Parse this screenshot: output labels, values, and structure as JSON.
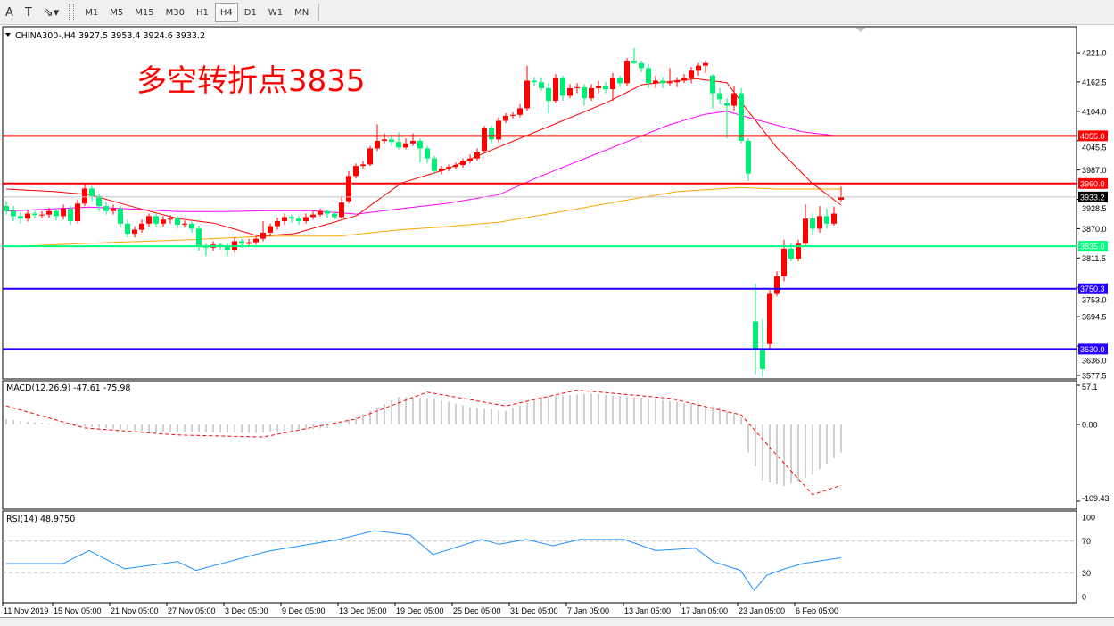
{
  "toolbar": {
    "tools": [
      {
        "label": "A",
        "icon": "text-icon"
      },
      {
        "label": "T",
        "icon": "text-label-icon"
      },
      {
        "label": "⇘▾",
        "icon": "arrows-dropdown-icon"
      }
    ],
    "timeframes": [
      "M1",
      "M5",
      "M15",
      "M30",
      "H1",
      "H4",
      "D1",
      "W1",
      "MN"
    ],
    "active_timeframe": "H4"
  },
  "header": {
    "symbol_info": "CHINA300-,H4  3927.5 3953.4 3924.6 3933.2"
  },
  "annotation": {
    "text": "多空转折点3835",
    "color": "#ff0000"
  },
  "colors": {
    "up": "#ff0000",
    "down": "#00ee77",
    "ma_fast": "#ff0000",
    "ma_mid": "#ff00ff",
    "ma_slow": "#ffa500",
    "macd_hist": "#c0c0c0",
    "macd_signal": "#ff0000",
    "rsi": "#1e90ff"
  },
  "chart_data": [
    {
      "type": "candlestick",
      "ylim": [
        3577.5,
        4221.0
      ],
      "price_ticks": [
        "4221.0",
        "4162.5",
        "4104.0",
        "4045.5",
        "3987.0",
        "3928.5",
        "3870.0",
        "3811.5",
        "3753.0",
        "3694.5",
        "3636.0",
        "3577.5"
      ],
      "time_labels": [
        {
          "bar": 0,
          "label": "11 Nov 2019"
        },
        {
          "bar": 7,
          "label": "15 Nov 05:00"
        },
        {
          "bar": 15,
          "label": "21 Nov 05:00"
        },
        {
          "bar": 23,
          "label": "27 Nov 05:00"
        },
        {
          "bar": 31,
          "label": "3 Dec 05:00"
        },
        {
          "bar": 39,
          "label": "9 Dec 05:00"
        },
        {
          "bar": 47,
          "label": "13 Dec 05:00"
        },
        {
          "bar": 55,
          "label": "19 Dec 05:00"
        },
        {
          "bar": 63,
          "label": "25 Dec 05:00"
        },
        {
          "bar": 71,
          "label": "31 Dec 05:00"
        },
        {
          "bar": 79,
          "label": "7 Jan 05:00"
        },
        {
          "bar": 87,
          "label": "13 Jan 05:00"
        },
        {
          "bar": 95,
          "label": "17 Jan 05:00"
        },
        {
          "bar": 103,
          "label": "23 Jan 05:00"
        },
        {
          "bar": 111,
          "label": "6 Feb 05:00"
        }
      ],
      "levels": [
        {
          "value": 4055.0,
          "label": "4055.0",
          "color": "#ff0000"
        },
        {
          "value": 3960.0,
          "label": "3960.0",
          "color": "#ff0000"
        },
        {
          "value": 3933.2,
          "label": "3933.2",
          "color": "#000000",
          "line": "#c0c0c0"
        },
        {
          "value": 3835.0,
          "label": "3835.0",
          "color": "#00ff7f"
        },
        {
          "value": 3750.3,
          "label": "3750.3",
          "color": "#2200ff"
        },
        {
          "value": 3630.0,
          "label": "3630.0",
          "color": "#2200ff"
        }
      ],
      "ohlc": [
        [
          3915,
          3925,
          3898,
          3905
        ],
        [
          3905,
          3915,
          3885,
          3895
        ],
        [
          3895,
          3902,
          3880,
          3890
        ],
        [
          3890,
          3908,
          3884,
          3900
        ],
        [
          3900,
          3906,
          3890,
          3897
        ],
        [
          3897,
          3905,
          3890,
          3898
        ],
        [
          3898,
          3912,
          3892,
          3905
        ],
        [
          3905,
          3910,
          3886,
          3895
        ],
        [
          3895,
          3918,
          3888,
          3910
        ],
        [
          3910,
          3915,
          3878,
          3885
        ],
        [
          3885,
          3928,
          3880,
          3920
        ],
        [
          3920,
          3958,
          3915,
          3950
        ],
        [
          3950,
          3955,
          3925,
          3935
        ],
        [
          3935,
          3940,
          3905,
          3915
        ],
        [
          3915,
          3922,
          3898,
          3905
        ],
        [
          3905,
          3918,
          3898,
          3910
        ],
        [
          3910,
          3915,
          3872,
          3880
        ],
        [
          3880,
          3888,
          3852,
          3860
        ],
        [
          3860,
          3875,
          3852,
          3868
        ],
        [
          3868,
          3888,
          3862,
          3880
        ],
        [
          3880,
          3900,
          3874,
          3895
        ],
        [
          3895,
          3900,
          3872,
          3880
        ],
        [
          3880,
          3895,
          3874,
          3888
        ],
        [
          3888,
          3897,
          3880,
          3890
        ],
        [
          3890,
          3895,
          3870,
          3878
        ],
        [
          3878,
          3886,
          3872,
          3880
        ],
        [
          3880,
          3884,
          3862,
          3870
        ],
        [
          3870,
          3876,
          3826,
          3835
        ],
        [
          3835,
          3840,
          3815,
          3832
        ],
        [
          3832,
          3845,
          3826,
          3838
        ],
        [
          3838,
          3842,
          3828,
          3836
        ],
        [
          3836,
          3840,
          3815,
          3828
        ],
        [
          3828,
          3852,
          3822,
          3845
        ],
        [
          3845,
          3850,
          3832,
          3840
        ],
        [
          3840,
          3850,
          3835,
          3843
        ],
        [
          3843,
          3855,
          3838,
          3850
        ],
        [
          3850,
          3885,
          3845,
          3862
        ],
        [
          3862,
          3880,
          3855,
          3875
        ],
        [
          3875,
          3892,
          3868,
          3885
        ],
        [
          3885,
          3900,
          3878,
          3893
        ],
        [
          3893,
          3898,
          3882,
          3890
        ],
        [
          3890,
          3895,
          3878,
          3885
        ],
        [
          3885,
          3900,
          3880,
          3893
        ],
        [
          3893,
          3905,
          3888,
          3898
        ],
        [
          3898,
          3910,
          3894,
          3905
        ],
        [
          3905,
          3908,
          3892,
          3900
        ],
        [
          3900,
          3904,
          3888,
          3893
        ],
        [
          3893,
          3935,
          3890,
          3922
        ],
        [
          3925,
          3985,
          3920,
          3975
        ],
        [
          3975,
          4000,
          3970,
          3995
        ],
        [
          3995,
          4005,
          3990,
          3998
        ],
        [
          3998,
          4035,
          3995,
          4030
        ],
        [
          4030,
          4078,
          4025,
          4045
        ],
        [
          4045,
          4060,
          4040,
          4048
        ],
        [
          4048,
          4058,
          4035,
          4043
        ],
        [
          4043,
          4062,
          4028,
          4032
        ],
        [
          4032,
          4050,
          4028,
          4040
        ],
        [
          4040,
          4060,
          4035,
          4045
        ],
        [
          4045,
          4050,
          4002,
          4030
        ],
        [
          4030,
          4035,
          4000,
          4010
        ],
        [
          4010,
          4015,
          3978,
          3985
        ],
        [
          3985,
          3995,
          3978,
          3990
        ],
        [
          3990,
          3998,
          3984,
          3993
        ],
        [
          3993,
          4002,
          3988,
          3997
        ],
        [
          3997,
          4010,
          3992,
          4005
        ],
        [
          4005,
          4018,
          4000,
          4010
        ],
        [
          4010,
          4030,
          4005,
          4022
        ],
        [
          4025,
          4075,
          4020,
          4070
        ],
        [
          4070,
          4075,
          4040,
          4048
        ],
        [
          4048,
          4092,
          4042,
          4085
        ],
        [
          4085,
          4100,
          4080,
          4095
        ],
        [
          4095,
          4102,
          4090,
          4097
        ],
        [
          4097,
          4118,
          4092,
          4110
        ],
        [
          4110,
          4195,
          4105,
          4165
        ],
        [
          4165,
          4172,
          4155,
          4162
        ],
        [
          4162,
          4170,
          4145,
          4150
        ],
        [
          4150,
          4160,
          4100,
          4125
        ],
        [
          4125,
          4178,
          4120,
          4170
        ],
        [
          4170,
          4175,
          4125,
          4135
        ],
        [
          4135,
          4158,
          4130,
          4150
        ],
        [
          4150,
          4160,
          4140,
          4152
        ],
        [
          4152,
          4158,
          4115,
          4130
        ],
        [
          4130,
          4158,
          4125,
          4150
        ],
        [
          4150,
          4165,
          4140,
          4155
        ],
        [
          4155,
          4162,
          4140,
          4148
        ],
        [
          4148,
          4180,
          4125,
          4170
        ],
        [
          4170,
          4175,
          4152,
          4160
        ],
        [
          4160,
          4210,
          4155,
          4205
        ],
        [
          4205,
          4230,
          4198,
          4200
        ],
        [
          4200,
          4205,
          4182,
          4190
        ],
        [
          4190,
          4198,
          4150,
          4160
        ],
        [
          4160,
          4175,
          4150,
          4165
        ],
        [
          4165,
          4172,
          4150,
          4160
        ],
        [
          4160,
          4190,
          4155,
          4162
        ],
        [
          4162,
          4172,
          4152,
          4165
        ],
        [
          4165,
          4178,
          4160,
          4170
        ],
        [
          4170,
          4192,
          4160,
          4185
        ],
        [
          4185,
          4200,
          4175,
          4195
        ],
        [
          4195,
          4205,
          4180,
          4200
        ],
        [
          4175,
          4178,
          4110,
          4140
        ],
        [
          4140,
          4150,
          4118,
          4128
        ],
        [
          4120,
          4130,
          4050,
          4115
        ],
        [
          4115,
          4155,
          4105,
          4140
        ],
        [
          4140,
          4150,
          4040,
          4045
        ],
        [
          4045,
          4050,
          3965,
          3980
        ],
        [
          3685,
          3760,
          3580,
          3630
        ],
        [
          3630,
          3690,
          3575,
          3590
        ],
        [
          3640,
          3748,
          3630,
          3740
        ],
        [
          3740,
          3785,
          3735,
          3775
        ],
        [
          3775,
          3848,
          3765,
          3830
        ],
        [
          3830,
          3840,
          3805,
          3810
        ],
        [
          3810,
          3848,
          3805,
          3840
        ],
        [
          3840,
          3918,
          3834,
          3890
        ],
        [
          3890,
          3900,
          3858,
          3870
        ],
        [
          3870,
          3915,
          3862,
          3895
        ],
        [
          3895,
          3910,
          3870,
          3880
        ],
        [
          3880,
          3914,
          3876,
          3900
        ],
        [
          3927.5,
          3953.4,
          3924.6,
          3933.2
        ]
      ],
      "ma_fast": [
        [
          0,
          3949
        ],
        [
          6.6,
          3944
        ],
        [
          11.6,
          3938
        ],
        [
          17.9,
          3913
        ],
        [
          24.1,
          3890
        ],
        [
          29.1,
          3881
        ],
        [
          35.4,
          3855
        ],
        [
          40.4,
          3860
        ],
        [
          49.1,
          3896
        ],
        [
          55.4,
          3961
        ],
        [
          61.6,
          3988
        ],
        [
          69.1,
          4033
        ],
        [
          76.6,
          4077
        ],
        [
          84.1,
          4121
        ],
        [
          89.1,
          4157
        ],
        [
          96.6,
          4169
        ],
        [
          101,
          4161
        ],
        [
          103.5,
          4113
        ],
        [
          107.9,
          4033
        ],
        [
          112.9,
          3961
        ],
        [
          117,
          3917
        ]
      ],
      "ma_mid": [
        [
          0,
          3905
        ],
        [
          11.6,
          3913
        ],
        [
          17.9,
          3909
        ],
        [
          24.1,
          3904
        ],
        [
          30.4,
          3904
        ],
        [
          36.6,
          3906
        ],
        [
          42.9,
          3906
        ],
        [
          49.1,
          3899
        ],
        [
          55.4,
          3910
        ],
        [
          61.6,
          3920
        ],
        [
          69.1,
          3938
        ],
        [
          74.1,
          3970
        ],
        [
          80.4,
          4006
        ],
        [
          86.6,
          4041
        ],
        [
          92.9,
          4077
        ],
        [
          97.9,
          4098
        ],
        [
          101,
          4104
        ],
        [
          105.4,
          4086
        ],
        [
          111.6,
          4063
        ],
        [
          117,
          4054
        ]
      ],
      "ma_slow": [
        [
          0,
          3834
        ],
        [
          11.6,
          3841
        ],
        [
          24.1,
          3847
        ],
        [
          36.6,
          3855
        ],
        [
          46.6,
          3855
        ],
        [
          55.4,
          3868
        ],
        [
          61.6,
          3874
        ],
        [
          69.1,
          3883
        ],
        [
          76.6,
          3901
        ],
        [
          86.6,
          3926
        ],
        [
          94.1,
          3944
        ],
        [
          102.9,
          3952
        ],
        [
          107.9,
          3949
        ],
        [
          117,
          3949
        ]
      ]
    },
    {
      "type": "macd",
      "title": "MACD(12,26,9) -47.61 -75.98",
      "ylim": [
        -109.43,
        57.1
      ],
      "ticks": [
        "57.1",
        "0.00",
        "-109.43"
      ],
      "histogram": [
        [
          0,
          8
        ],
        [
          3,
          4
        ],
        [
          10,
          -2
        ],
        [
          20,
          -10
        ],
        [
          35,
          -12
        ],
        [
          45,
          -5
        ],
        [
          50,
          15
        ],
        [
          55,
          40
        ],
        [
          60,
          38
        ],
        [
          65,
          25
        ],
        [
          70,
          20
        ],
        [
          75,
          40
        ],
        [
          82,
          45
        ],
        [
          90,
          38
        ],
        [
          100,
          25
        ],
        [
          103,
          10
        ],
        [
          104,
          -40
        ],
        [
          106,
          -80
        ],
        [
          109,
          -88
        ],
        [
          113,
          -72
        ],
        [
          117,
          -40
        ]
      ],
      "signal": [
        [
          0,
          27
        ],
        [
          11,
          -5
        ],
        [
          24,
          -15
        ],
        [
          36,
          -18
        ],
        [
          49,
          8
        ],
        [
          59,
          47
        ],
        [
          70,
          27
        ],
        [
          80,
          50
        ],
        [
          93,
          38
        ],
        [
          103,
          14
        ],
        [
          108,
          -44
        ],
        [
          113,
          -100
        ],
        [
          117,
          -87
        ]
      ]
    },
    {
      "type": "rsi",
      "title": "RSI(14) 48.9750",
      "ylim": [
        0,
        100
      ],
      "ticks": [
        "100",
        "70",
        "30",
        "0"
      ],
      "levels": [
        70,
        30
      ],
      "values": [
        [
          0,
          41.6
        ],
        [
          8,
          41.6
        ],
        [
          11.6,
          58
        ],
        [
          16.6,
          35
        ],
        [
          24,
          44
        ],
        [
          26.6,
          33
        ],
        [
          36.6,
          57
        ],
        [
          46.6,
          72
        ],
        [
          51.6,
          83
        ],
        [
          56.6,
          77.5
        ],
        [
          59.8,
          53
        ],
        [
          66.6,
          72
        ],
        [
          69.1,
          66
        ],
        [
          72.9,
          72
        ],
        [
          76.6,
          64
        ],
        [
          80.4,
          72
        ],
        [
          86.6,
          72
        ],
        [
          91,
          58
        ],
        [
          96.6,
          61
        ],
        [
          99.1,
          44
        ],
        [
          102.9,
          33
        ],
        [
          104.8,
          8
        ],
        [
          106.6,
          27
        ],
        [
          109.1,
          35
        ],
        [
          111.6,
          41.6
        ],
        [
          117,
          49
        ]
      ]
    }
  ]
}
